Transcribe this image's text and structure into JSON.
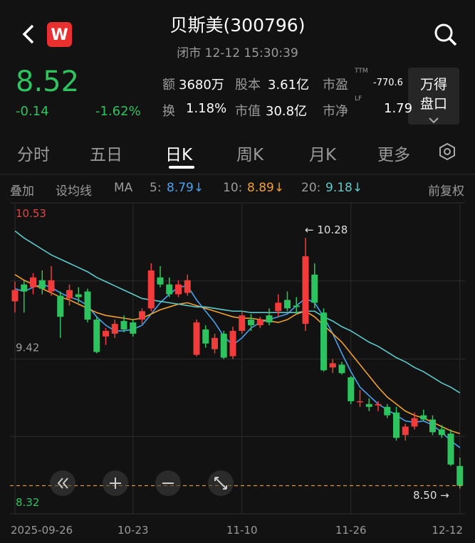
{
  "header": {
    "logo": "W",
    "title": "贝斯美(300796)",
    "status": "闭市 12-12 15:30:39",
    "price": "8.52",
    "change": "-0.14",
    "change_pct": "-1.62%",
    "stats": [
      {
        "label": "额",
        "value": "3680万"
      },
      {
        "label": "股本",
        "value": "3.61亿"
      },
      {
        "label": "市盈",
        "sup": "TTM",
        "value": "-770.6"
      },
      {
        "label": "换",
        "value": "1.18%"
      },
      {
        "label": "市值",
        "value": "30.8亿"
      },
      {
        "label": "市净",
        "sup": "LF",
        "value": "1.79"
      }
    ],
    "button": [
      "万得",
      "盘口"
    ]
  },
  "tabs": [
    "分时",
    "五日",
    "日K",
    "周K",
    "月K",
    "更多"
  ],
  "toolbar": {
    "overlay": "叠加",
    "set_ma": "设均线",
    "ma": "MA",
    "adjust": "前复权"
  },
  "chart_data": {
    "type": "candlestick",
    "ylim": [
      8.32,
      10.53
    ],
    "yticks": [
      10.53,
      9.42,
      8.32
    ],
    "grid": true,
    "up_color": "#f23c3c",
    "down_color": "#2fc35f",
    "categories": [
      "2025-09-26",
      null,
      null,
      null,
      null,
      null,
      null,
      null,
      null,
      null,
      null,
      null,
      null,
      "10-23",
      null,
      null,
      null,
      null,
      null,
      null,
      null,
      null,
      null,
      null,
      null,
      "11-10",
      null,
      null,
      null,
      null,
      null,
      null,
      null,
      null,
      null,
      null,
      null,
      "11-26",
      null,
      null,
      null,
      null,
      null,
      null,
      null,
      null,
      null,
      null,
      null,
      "12-12"
    ],
    "open": [
      9.83,
      9.95,
      9.93,
      9.98,
      9.9,
      9.87,
      9.85,
      9.88,
      9.9,
      9.7,
      9.58,
      9.6,
      9.69,
      9.68,
      9.7,
      9.78,
      10.0,
      9.95,
      9.88,
      9.89,
      9.45,
      9.63,
      9.49,
      9.6,
      9.44,
      9.62,
      9.7,
      9.66,
      9.73,
      9.76,
      9.84,
      9.8,
      9.67,
      10.02,
      9.75,
      9.36,
      9.38,
      9.29,
      9.12,
      9.1,
      9.09,
      9.08,
      9.04,
      8.88,
      8.94,
      9.02,
      8.99,
      8.92,
      8.89,
      8.66
    ],
    "high": [
      9.97,
      9.98,
      10.03,
      10.05,
      10.08,
      9.9,
      9.95,
      9.93,
      9.92,
      9.72,
      9.64,
      9.7,
      9.73,
      9.7,
      9.78,
      10.1,
      10.08,
      10.0,
      9.98,
      10.02,
      9.7,
      9.66,
      9.6,
      9.62,
      9.65,
      9.76,
      9.74,
      9.72,
      9.78,
      9.88,
      9.9,
      9.86,
      10.28,
      10.1,
      9.78,
      9.42,
      9.4,
      9.3,
      9.2,
      9.14,
      9.12,
      9.1,
      9.08,
      8.96,
      9.04,
      9.06,
      9.02,
      8.95,
      8.92,
      8.72
    ],
    "low": [
      9.75,
      9.75,
      9.88,
      9.88,
      9.87,
      9.57,
      9.8,
      9.82,
      9.68,
      9.46,
      9.52,
      9.57,
      9.61,
      9.58,
      9.67,
      9.76,
      9.93,
      9.86,
      9.86,
      9.87,
      9.44,
      9.5,
      9.46,
      9.42,
      9.42,
      9.6,
      9.62,
      9.64,
      9.66,
      9.72,
      9.76,
      9.74,
      9.62,
      9.78,
      9.33,
      9.32,
      9.31,
      9.1,
      9.08,
      9.05,
      9.05,
      9.0,
      8.84,
      8.84,
      8.92,
      8.98,
      8.88,
      8.86,
      8.66,
      8.5
    ],
    "close": [
      9.91,
      9.9,
      10.0,
      9.92,
      9.98,
      9.72,
      9.91,
      9.86,
      9.7,
      9.47,
      9.62,
      9.67,
      9.63,
      9.6,
      9.76,
      10.05,
      9.95,
      9.88,
      9.95,
      9.98,
      9.68,
      9.53,
      9.57,
      9.43,
      9.62,
      9.73,
      9.66,
      9.7,
      9.68,
      9.82,
      9.78,
      9.79,
      10.15,
      9.82,
      9.34,
      9.39,
      9.32,
      9.12,
      9.12,
      9.08,
      9.1,
      9.02,
      8.86,
      8.94,
      9.0,
      8.99,
      8.9,
      8.88,
      8.67,
      8.52
    ],
    "series": [
      {
        "name": "5:",
        "value_label": "8.79↓",
        "color": "#4aa3f0",
        "values": [
          9.92,
          9.9,
          9.93,
          9.95,
          9.93,
          9.89,
          9.86,
          9.84,
          9.8,
          9.72,
          9.66,
          9.62,
          9.62,
          9.63,
          9.66,
          9.74,
          9.82,
          9.88,
          9.93,
          9.94,
          9.84,
          9.76,
          9.68,
          9.58,
          9.52,
          9.57,
          9.64,
          9.68,
          9.7,
          9.72,
          9.74,
          9.8,
          9.85,
          9.82,
          9.72,
          9.6,
          9.46,
          9.33,
          9.22,
          9.16,
          9.1,
          9.06,
          9.02,
          8.98,
          8.97,
          8.98,
          8.95,
          8.9,
          8.84,
          8.79
        ]
      },
      {
        "name": "10:",
        "value_label": "8.89↓",
        "color": "#f0a030",
        "values": [
          10.02,
          9.98,
          9.95,
          9.92,
          9.89,
          9.86,
          9.84,
          9.81,
          9.78,
          9.75,
          9.73,
          9.72,
          9.71,
          9.7,
          9.71,
          9.74,
          9.77,
          9.79,
          9.81,
          9.82,
          9.8,
          9.78,
          9.76,
          9.74,
          9.72,
          9.71,
          9.71,
          9.7,
          9.69,
          9.68,
          9.7,
          9.74,
          9.76,
          9.72,
          9.66,
          9.6,
          9.54,
          9.46,
          9.38,
          9.3,
          9.22,
          9.15,
          9.1,
          9.05,
          9.02,
          9.0,
          8.97,
          8.94,
          8.91,
          8.89
        ]
      },
      {
        "name": "20:",
        "value_label": "9.18↓",
        "color": "#5fc9c9",
        "values": [
          10.33,
          10.28,
          10.24,
          10.2,
          10.16,
          10.13,
          10.1,
          10.07,
          10.04,
          10.0,
          9.97,
          9.94,
          9.91,
          9.88,
          9.85,
          9.84,
          9.83,
          9.82,
          9.81,
          9.8,
          9.79,
          9.79,
          9.78,
          9.77,
          9.76,
          9.76,
          9.75,
          9.75,
          9.75,
          9.75,
          9.75,
          9.75,
          9.76,
          9.76,
          9.72,
          9.69,
          9.65,
          9.62,
          9.58,
          9.54,
          9.51,
          9.47,
          9.43,
          9.4,
          9.36,
          9.33,
          9.29,
          9.25,
          9.22,
          9.18
        ]
      }
    ],
    "annotations": [
      "← 10.28",
      "8.50 →"
    ]
  }
}
